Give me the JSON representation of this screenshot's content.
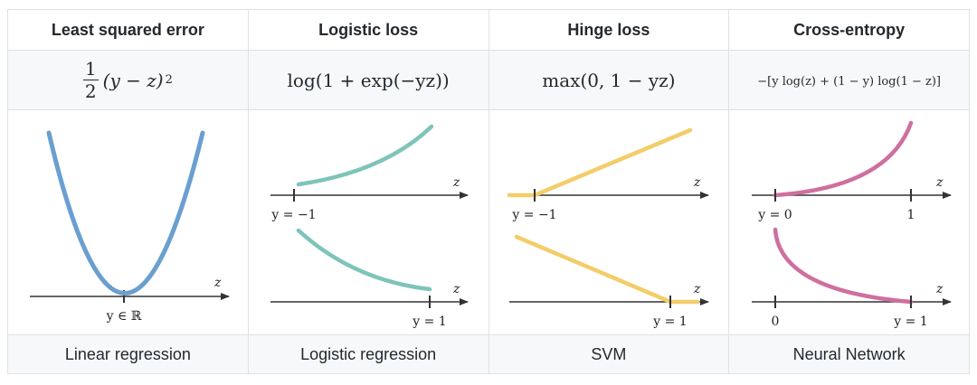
{
  "columns": [
    {
      "title": "Least squared error",
      "formula": "(y − z)",
      "formula_frac_num": "1",
      "formula_frac_den": "2",
      "formula_sup": "2",
      "model": "Linear regression",
      "labels": {
        "z": "z",
        "y": "y ∈ ℝ"
      }
    },
    {
      "title": "Logistic loss",
      "formula": "log(1 + exp(−yz))",
      "model": "Logistic regression",
      "labels": {
        "z_top": "z",
        "y_top": "y = −1",
        "z_bottom": "z",
        "y_bottom": "y = 1"
      }
    },
    {
      "title": "Hinge loss",
      "formula": "max(0, 1 − yz)",
      "model": "SVM",
      "labels": {
        "z_top": "z",
        "y_top": "y = −1",
        "z_bottom": "z",
        "y_bottom": "y = 1"
      }
    },
    {
      "title": "Cross-entropy",
      "formula": "−[y log(z) + (1 − y) log(1 − z)]",
      "model": "Neural Network",
      "labels": {
        "z_top": "z",
        "y_top": "y = 0",
        "one_top": "1",
        "z_bottom": "z",
        "zero_bottom": "0",
        "y_bottom": "y = 1"
      }
    }
  ],
  "colors": {
    "squared": "#6a9fd0",
    "logistic": "#7ec4b8",
    "hinge": "#f3cd69",
    "crossentropy": "#cf6f9f",
    "axis": "#333333"
  }
}
